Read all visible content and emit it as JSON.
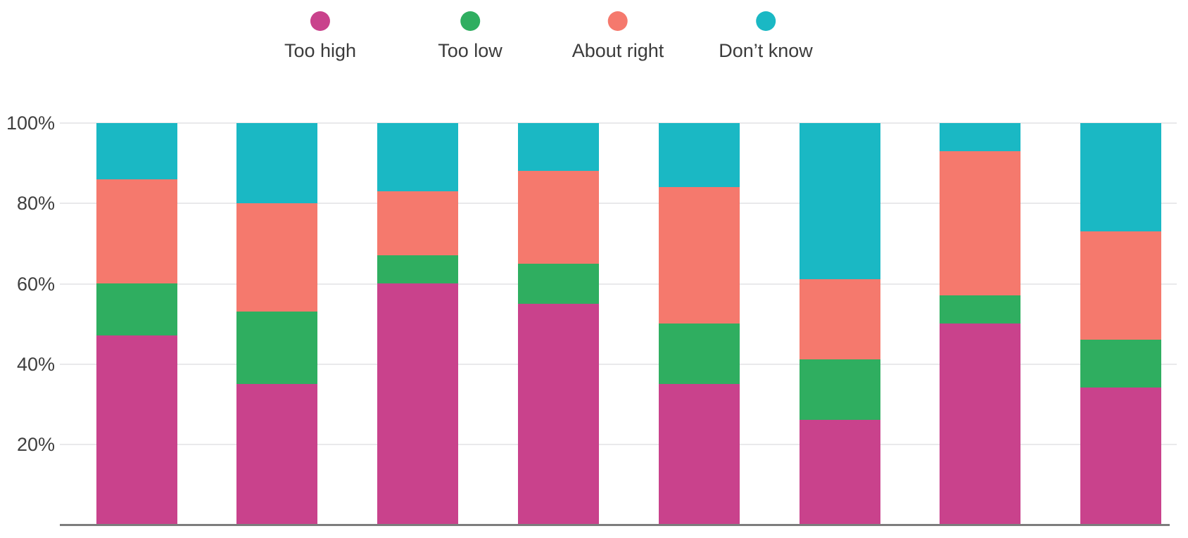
{
  "chart_data": {
    "type": "bar",
    "stacked": true,
    "orientation": "vertical",
    "title": "",
    "categories": [
      "",
      "",
      "",
      "",
      "",
      "",
      "",
      ""
    ],
    "series": [
      {
        "name": "Too high",
        "color": "#c9428c",
        "values": [
          47,
          35,
          60,
          55,
          35,
          26,
          50,
          34
        ]
      },
      {
        "name": "Too low",
        "color": "#2fae60",
        "values": [
          13,
          18,
          7,
          10,
          15,
          15,
          7,
          12
        ]
      },
      {
        "name": "About right",
        "color": "#f5796d",
        "values": [
          26,
          27,
          16,
          23,
          34,
          20,
          36,
          27
        ]
      },
      {
        "name": "Don’t know",
        "color": "#1ab8c4",
        "values": [
          14,
          20,
          17,
          12,
          16,
          39,
          7,
          27
        ]
      }
    ],
    "stack_order": "bottom-to-top as listed",
    "units": "percent",
    "ylim": [
      0,
      100
    ],
    "y_tick_labels": [
      "100%",
      "80%",
      "60%",
      "40%",
      "20%"
    ],
    "x_tick_labels_visible": false,
    "grid": true,
    "legend_position": "top"
  },
  "legend": {
    "items": [
      {
        "label": "Too high",
        "color": "#c9428c"
      },
      {
        "label": "Too low",
        "color": "#2fae60"
      },
      {
        "label": "About right",
        "color": "#f5796d"
      },
      {
        "label": "Don’t know",
        "color": "#1ab8c4"
      }
    ]
  },
  "y_axis": {
    "tick_labels": [
      "100%",
      "80%",
      "60%",
      "40%",
      "20%"
    ]
  },
  "colors": {
    "background": "#ffffff",
    "gridline": "#e9e9eb",
    "baseline": "#7d7d7d",
    "text": "#3b3b3b"
  }
}
